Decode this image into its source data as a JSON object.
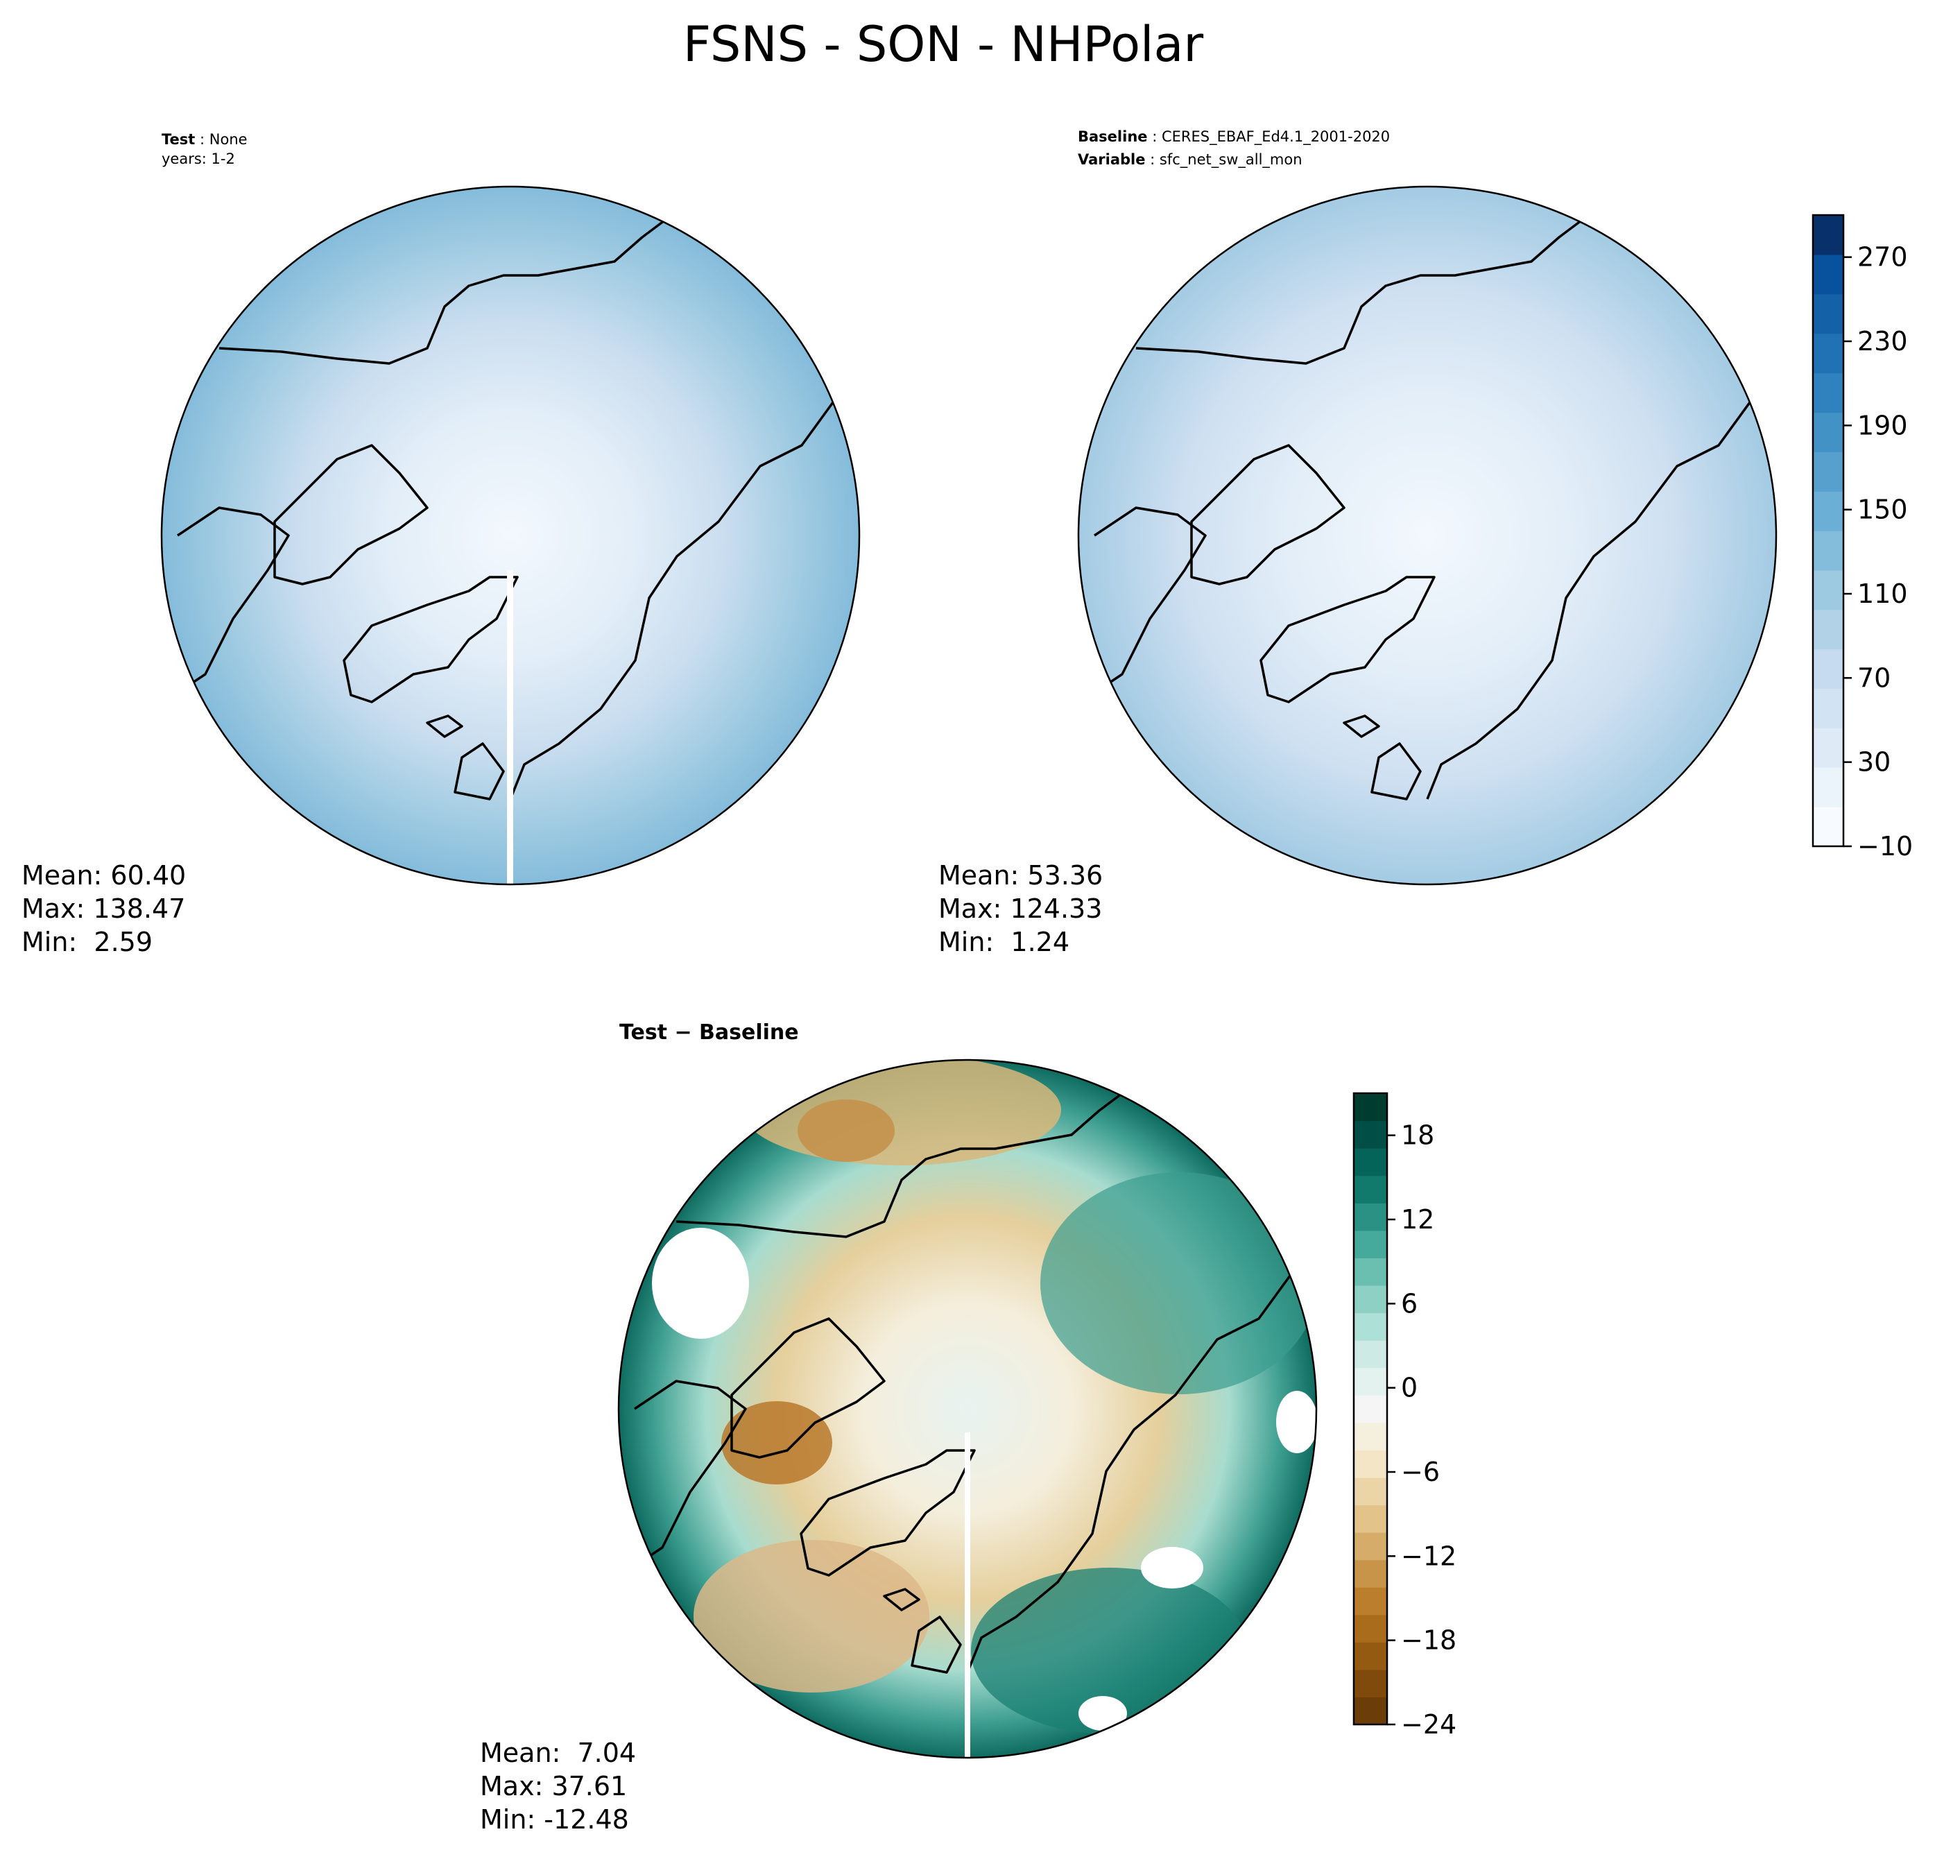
{
  "title": "FSNS - SON - NHPolar",
  "panels": [
    {
      "id": "test",
      "header": [
        {
          "label": "Test",
          "value": "None"
        },
        {
          "label": "",
          "value": "years: 1-2"
        }
      ],
      "stats": [
        "Mean: 60.40",
        "Max: 138.47",
        "Min:  2.59"
      ]
    },
    {
      "id": "baseline",
      "header": [
        {
          "label": "Baseline",
          "value": "CERES_EBAF_Ed4.1_2001-2020"
        },
        {
          "label": "Variable",
          "value": "sfc_net_sw_all_mon"
        }
      ],
      "stats": [
        "Mean: 53.36",
        "Max: 124.33",
        "Min:  1.24"
      ]
    },
    {
      "id": "diff",
      "header_text": "Test − Baseline",
      "stats": [
        "Mean:  7.04",
        "Max: 37.61",
        "Min: -12.48"
      ]
    }
  ],
  "chart_data": [
    {
      "type": "heatmap",
      "name": "test",
      "projection": "north polar stereographic",
      "mean": 60.4,
      "max": 138.47,
      "min": 2.59
    },
    {
      "type": "heatmap",
      "name": "baseline",
      "projection": "north polar stereographic",
      "mean": 53.36,
      "max": 124.33,
      "min": 1.24
    },
    {
      "type": "heatmap",
      "name": "test-minus-baseline",
      "projection": "north polar stereographic",
      "mean": 7.04,
      "max": 37.61,
      "min": -12.48
    }
  ],
  "colorbars": {
    "main": {
      "range": [
        -10,
        290
      ],
      "step": 20,
      "ticks": [
        -10,
        30,
        70,
        110,
        150,
        190,
        230,
        270
      ],
      "tick_labels": [
        "−10",
        "30",
        "70",
        "110",
        "150",
        "190",
        "230",
        "270"
      ],
      "colors": [
        "#f7fbff",
        "#ebf3fb",
        "#deebf7",
        "#d2e3f3",
        "#c6dbef",
        "#b2d2e8",
        "#9ecae1",
        "#84bcdb",
        "#6baed6",
        "#57a0ce",
        "#4292c6",
        "#3082be",
        "#2171b5",
        "#1461a8",
        "#08519c",
        "#08306b"
      ]
    },
    "diff": {
      "range": [
        -24,
        21
      ],
      "step": 2,
      "ticks": [
        -24,
        -18,
        -12,
        -6,
        0,
        6,
        12,
        18
      ],
      "tick_labels": [
        "−24",
        "−18",
        "−12",
        "−6",
        "0",
        "6",
        "12",
        "18"
      ],
      "colors": [
        "#6a3d09",
        "#7f4a0c",
        "#955a11",
        "#a96b1c",
        "#ba7e2c",
        "#c8944a",
        "#d6ac6a",
        "#e2c38a",
        "#ebd5a7",
        "#f3e5c5",
        "#f5efde",
        "#f5f5f5",
        "#e3f2ef",
        "#cdebe4",
        "#ade0d6",
        "#8ed1c4",
        "#6abfb1",
        "#45a99b",
        "#2a9184",
        "#117a6d",
        "#04645a",
        "#004e45",
        "#003c30"
      ]
    }
  },
  "colors": {
    "coast": "#000000",
    "map_border": "#000000"
  }
}
